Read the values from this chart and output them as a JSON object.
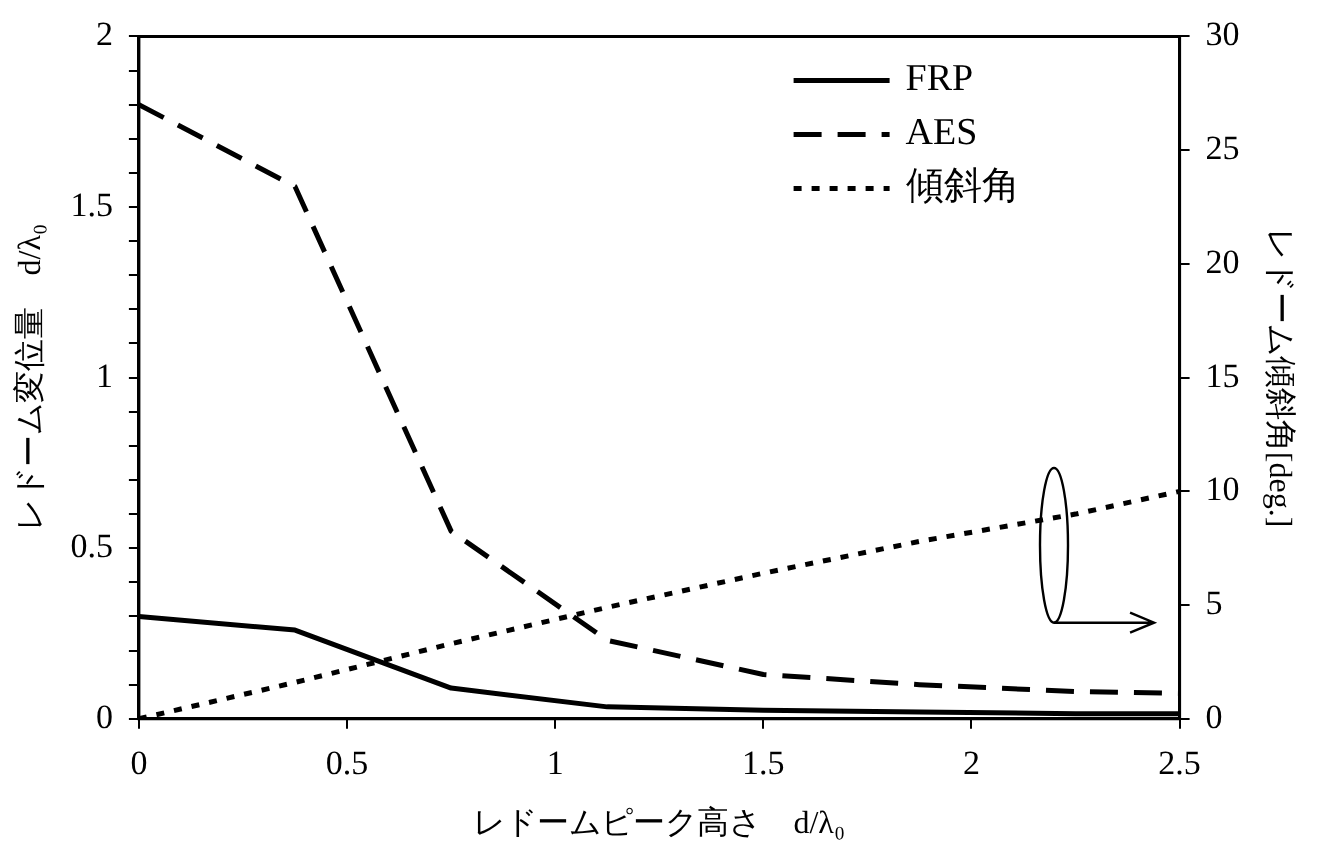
{
  "chart_data": {
    "type": "line",
    "xlabel": "レドームピーク高さ　d/λ₀",
    "ylabel": "レドーム変位量　d/λ₀",
    "y2label": "レドーム傾斜角[deg.]",
    "x": [
      0,
      0.375,
      0.75,
      1.125,
      1.5,
      1.875,
      2.25,
      2.5
    ],
    "series": [
      {
        "name": "FRP",
        "color": "#000000",
        "line_style": "solid",
        "values": [
          0.3,
          0.26,
          0.09,
          0.035,
          0.025,
          0.02,
          0.015,
          0.015
        ]
      },
      {
        "name": "AES",
        "color": "#000000",
        "line_style": "dashed",
        "values": [
          1.8,
          1.56,
          0.55,
          0.23,
          0.13,
          0.1,
          0.08,
          0.075
        ]
      },
      {
        "name": "傾斜角",
        "color": "#000000",
        "line_style": "dotted",
        "axis": "y2",
        "values": [
          0,
          1.6,
          3.3,
          4.9,
          6.4,
          7.8,
          9,
          10
        ]
      }
    ],
    "xlim": [
      0,
      2.5
    ],
    "xticks": [
      0,
      0.5,
      1,
      1.5,
      2,
      2.5
    ],
    "ylim": [
      0,
      2
    ],
    "yticks": [
      0,
      {
        "value": 0.1,
        "label": null
      },
      {
        "value": 0.2,
        "label": null
      },
      {
        "value": 0.3,
        "label": null
      },
      {
        "value": 0.4,
        "label": null
      },
      0.5,
      {
        "value": 0.6,
        "label": null
      },
      {
        "value": 0.7,
        "label": null
      },
      {
        "value": 0.8,
        "label": null
      },
      {
        "value": 0.9,
        "label": null
      },
      1,
      {
        "value": 1.1,
        "label": null
      },
      {
        "value": 1.2,
        "label": null
      },
      {
        "value": 1.3,
        "label": null
      },
      {
        "value": 1.4,
        "label": null
      },
      1.5,
      {
        "value": 1.6,
        "label": null
      },
      {
        "value": 1.7,
        "label": null
      },
      {
        "value": 1.8,
        "label": null
      },
      {
        "value": 1.9,
        "label": null
      },
      2
    ],
    "y2lim": [
      0,
      30
    ],
    "y2ticks": [
      0,
      5,
      10,
      15,
      20,
      25,
      30
    ],
    "grid": false,
    "legend": "top right",
    "marker": "none"
  }
}
